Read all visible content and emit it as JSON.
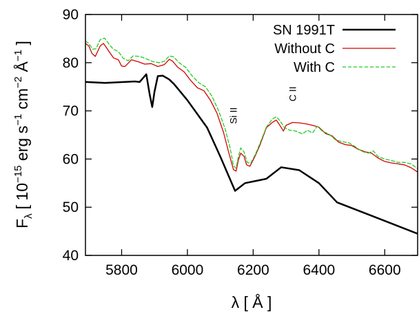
{
  "chart_data": {
    "type": "line",
    "xlabel": "λ [ Å ]",
    "ylabel_parts": {
      "main": "F",
      "sub": "λ",
      "unit_open": "[ 10",
      "exp1": "−15",
      "unit_mid": " erg s",
      "exp2": "−1",
      "unit_mid2": " cm",
      "exp3": "−2",
      "unit_mid3": " Å",
      "exp4": "−1",
      "unit_close": " ]"
    },
    "xlim": [
      5690,
      6700
    ],
    "ylim": [
      40,
      90
    ],
    "xticks": [
      5800,
      6000,
      6200,
      6400,
      6600
    ],
    "yticks": [
      40,
      50,
      60,
      70,
      80,
      90
    ],
    "grid": false,
    "legend_position": "top-right",
    "annotations": [
      {
        "text": "Si II",
        "x": 6150,
        "y": 69,
        "rotation": -90
      },
      {
        "text": "C II",
        "x": 6330,
        "y": 73.5,
        "rotation": -90
      }
    ],
    "series": [
      {
        "name": "SN 1991T",
        "color": "#000000",
        "style": "solid",
        "width": 2.5,
        "points": [
          [
            5690,
            76
          ],
          [
            5750,
            75.8
          ],
          [
            5840,
            76.1
          ],
          [
            5855,
            76.0
          ],
          [
            5875,
            77.6
          ],
          [
            5885,
            73.5
          ],
          [
            5893,
            70.8
          ],
          [
            5900,
            74
          ],
          [
            5910,
            77.2
          ],
          [
            5925,
            77.3
          ],
          [
            5945,
            76.5
          ],
          [
            5960,
            75.5
          ],
          [
            6000,
            72.2
          ],
          [
            6060,
            66.5
          ],
          [
            6100,
            60.5
          ],
          [
            6145,
            53.4
          ],
          [
            6175,
            55
          ],
          [
            6240,
            55.9
          ],
          [
            6285,
            58.3
          ],
          [
            6340,
            57.7
          ],
          [
            6400,
            55
          ],
          [
            6455,
            51
          ],
          [
            6550,
            48.5
          ],
          [
            6700,
            44.5
          ]
        ]
      },
      {
        "name": "Without C",
        "color": "#d40000",
        "style": "solid",
        "width": 1.3,
        "points": [
          [
            5690,
            84
          ],
          [
            5700,
            83.5
          ],
          [
            5710,
            81.9
          ],
          [
            5720,
            81.3
          ],
          [
            5735,
            83.5
          ],
          [
            5745,
            84.0
          ],
          [
            5760,
            82.5
          ],
          [
            5775,
            81.0
          ],
          [
            5790,
            80.6
          ],
          [
            5800,
            79.3
          ],
          [
            5810,
            79.2
          ],
          [
            5830,
            80.6
          ],
          [
            5850,
            80.2
          ],
          [
            5870,
            79.7
          ],
          [
            5890,
            79.8
          ],
          [
            5910,
            79.2
          ],
          [
            5930,
            79.6
          ],
          [
            5945,
            80.7
          ],
          [
            5955,
            80.3
          ],
          [
            5970,
            79.1
          ],
          [
            5990,
            78.1
          ],
          [
            6010,
            76.3
          ],
          [
            6030,
            74.8
          ],
          [
            6050,
            74.2
          ],
          [
            6070,
            72.2
          ],
          [
            6090,
            69.5
          ],
          [
            6110,
            65.5
          ],
          [
            6125,
            61.5
          ],
          [
            6140,
            57.8
          ],
          [
            6148,
            57.5
          ],
          [
            6155,
            59.8
          ],
          [
            6162,
            61.2
          ],
          [
            6172,
            60.6
          ],
          [
            6180,
            58.8
          ],
          [
            6190,
            58.5
          ],
          [
            6205,
            60.5
          ],
          [
            6220,
            62.8
          ],
          [
            6240,
            66.5
          ],
          [
            6258,
            67.6
          ],
          [
            6270,
            68.1
          ],
          [
            6280,
            67.1
          ],
          [
            6292,
            65.8
          ],
          [
            6300,
            67.0
          ],
          [
            6320,
            67.6
          ],
          [
            6340,
            67.5
          ],
          [
            6360,
            67.3
          ],
          [
            6380,
            67.0
          ],
          [
            6400,
            66.6
          ],
          [
            6420,
            65.3
          ],
          [
            6440,
            64.8
          ],
          [
            6460,
            63.5
          ],
          [
            6480,
            63.0
          ],
          [
            6500,
            62.8
          ],
          [
            6520,
            62.0
          ],
          [
            6540,
            61.5
          ],
          [
            6560,
            61.2
          ],
          [
            6580,
            60.2
          ],
          [
            6600,
            59.5
          ],
          [
            6620,
            59.2
          ],
          [
            6640,
            59.0
          ],
          [
            6660,
            58.8
          ],
          [
            6680,
            58.2
          ],
          [
            6700,
            57.3
          ]
        ]
      },
      {
        "name": "With C",
        "color": "#22cc22",
        "style": "dashed",
        "width": 1.3,
        "points": [
          [
            5690,
            84.5
          ],
          [
            5700,
            84.0
          ],
          [
            5712,
            82.8
          ],
          [
            5722,
            82.9
          ],
          [
            5735,
            84.8
          ],
          [
            5748,
            85.1
          ],
          [
            5762,
            83.8
          ],
          [
            5775,
            82.8
          ],
          [
            5790,
            82.3
          ],
          [
            5805,
            80.9
          ],
          [
            5820,
            80.4
          ],
          [
            5835,
            81.4
          ],
          [
            5855,
            81.3
          ],
          [
            5875,
            80.8
          ],
          [
            5895,
            80.2
          ],
          [
            5915,
            80.0
          ],
          [
            5930,
            80.3
          ],
          [
            5945,
            81.4
          ],
          [
            5958,
            81.2
          ],
          [
            5975,
            80.0
          ],
          [
            5995,
            79.0
          ],
          [
            6015,
            77.2
          ],
          [
            6035,
            75.8
          ],
          [
            6055,
            75.0
          ],
          [
            6075,
            73.0
          ],
          [
            6095,
            70.0
          ],
          [
            6115,
            66.2
          ],
          [
            6130,
            62.2
          ],
          [
            6140,
            58.6
          ],
          [
            6148,
            58.1
          ],
          [
            6155,
            60.5
          ],
          [
            6162,
            62.3
          ],
          [
            6172,
            61.5
          ],
          [
            6182,
            59.3
          ],
          [
            6192,
            59.1
          ],
          [
            6207,
            61.0
          ],
          [
            6222,
            63.5
          ],
          [
            6240,
            66.6
          ],
          [
            6258,
            68.3
          ],
          [
            6270,
            68.8
          ],
          [
            6282,
            67.9
          ],
          [
            6295,
            66.5
          ],
          [
            6310,
            66.0
          ],
          [
            6330,
            65.8
          ],
          [
            6350,
            65.2
          ],
          [
            6365,
            66.0
          ],
          [
            6380,
            65.4
          ],
          [
            6395,
            66.8
          ],
          [
            6410,
            65.8
          ],
          [
            6430,
            65.2
          ],
          [
            6450,
            64.0
          ],
          [
            6470,
            63.6
          ],
          [
            6490,
            63.4
          ],
          [
            6510,
            62.6
          ],
          [
            6530,
            61.6
          ],
          [
            6550,
            61.2
          ],
          [
            6565,
            61.7
          ],
          [
            6580,
            60.5
          ],
          [
            6600,
            60.0
          ],
          [
            6620,
            59.7
          ],
          [
            6640,
            59.3
          ],
          [
            6660,
            59.3
          ],
          [
            6680,
            59.0
          ],
          [
            6700,
            58.0
          ]
        ]
      }
    ]
  }
}
